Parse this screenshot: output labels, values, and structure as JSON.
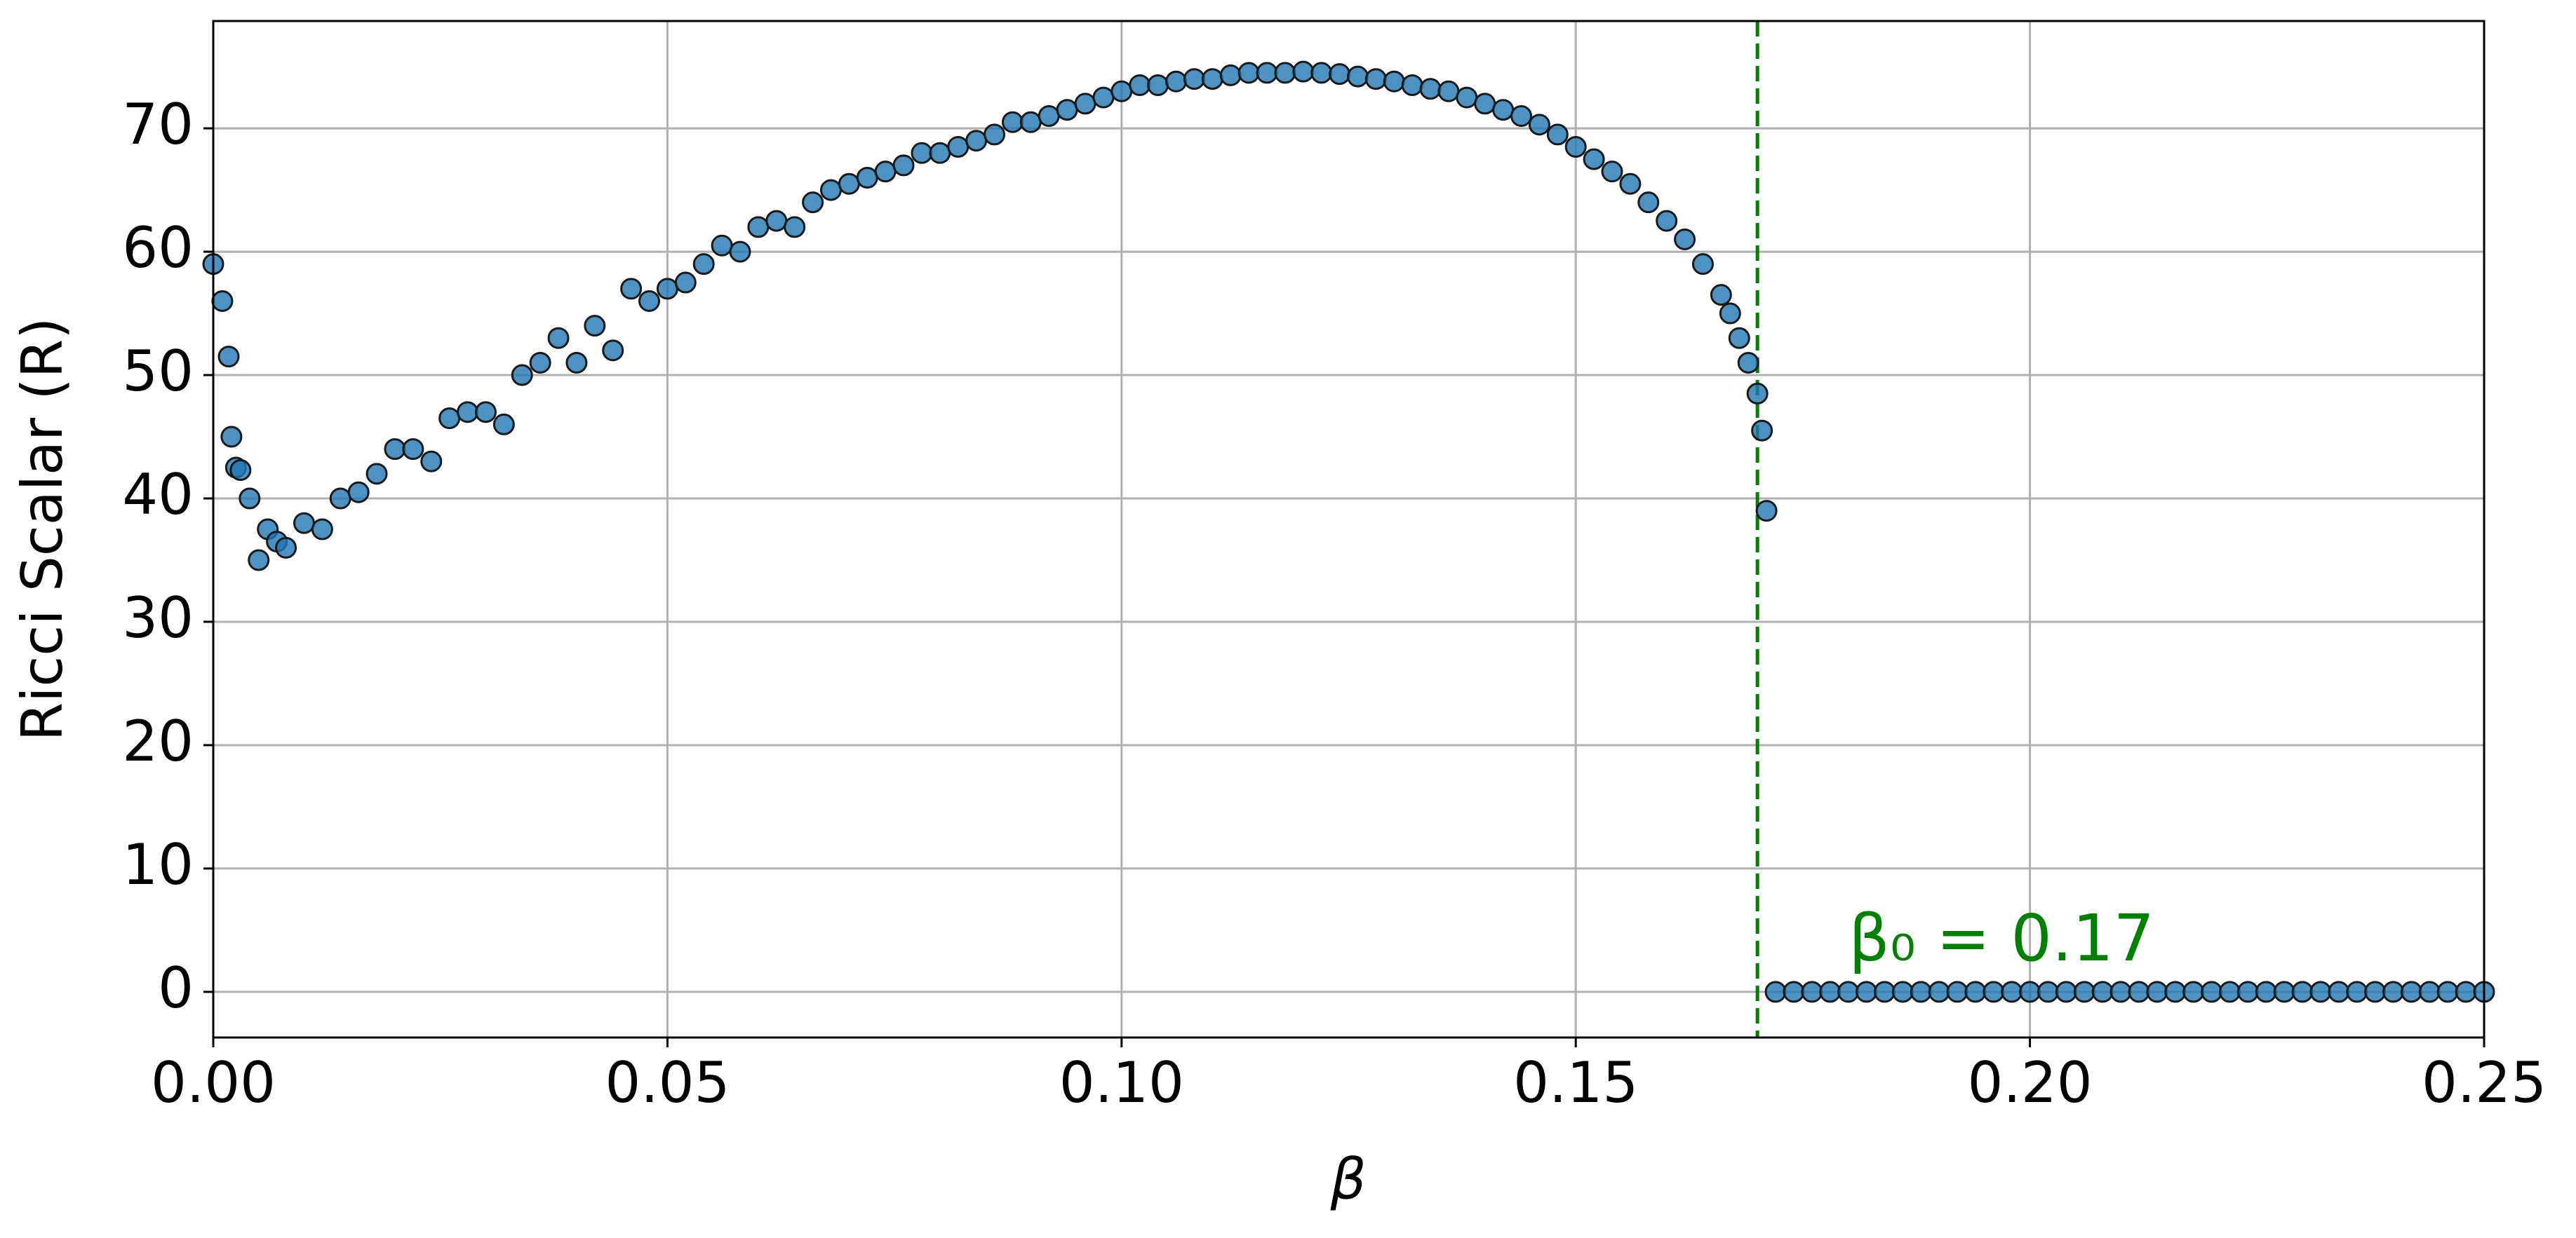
{
  "chart_data": {
    "type": "scatter",
    "xlabel": "β",
    "ylabel": "Ricci Scalar (R)",
    "xlim": [
      0,
      0.25
    ],
    "ylim": [
      -3.7,
      78.7
    ],
    "xticks": [
      {
        "value": 0,
        "label": "0.00"
      },
      {
        "value": 0.05,
        "label": "0.05"
      },
      {
        "value": 0.1,
        "label": "0.10"
      },
      {
        "value": 0.15,
        "label": "0.15"
      },
      {
        "value": 0.2,
        "label": "0.20"
      },
      {
        "value": 0.25,
        "label": "0.25"
      }
    ],
    "yticks": [
      0,
      10,
      20,
      30,
      40,
      50,
      60,
      70
    ],
    "grid": true,
    "vline": {
      "x": 0.17,
      "color": "#008000",
      "label": "β₀ = 0.17"
    },
    "series": [
      {
        "color": "#1f77b4",
        "x": [
          0,
          0.001,
          0.0017,
          0.002,
          0.0025,
          0.003,
          0.004,
          0.005,
          0.006,
          0.007,
          0.008,
          0.01,
          0.012,
          0.014,
          0.016,
          0.018,
          0.02,
          0.022,
          0.024,
          0.026,
          0.028,
          0.03,
          0.032,
          0.034,
          0.036,
          0.038,
          0.04,
          0.042,
          0.044,
          0.046,
          0.048,
          0.05,
          0.052,
          0.054,
          0.056,
          0.058,
          0.06,
          0.062,
          0.064,
          0.066,
          0.068,
          0.07,
          0.072,
          0.074,
          0.076,
          0.078,
          0.08,
          0.082,
          0.084,
          0.086,
          0.088,
          0.09,
          0.092,
          0.094,
          0.096,
          0.098,
          0.1,
          0.102,
          0.104,
          0.106,
          0.108,
          0.11,
          0.112,
          0.114,
          0.116,
          0.118,
          0.12,
          0.122,
          0.124,
          0.126,
          0.128,
          0.13,
          0.132,
          0.134,
          0.136,
          0.138,
          0.14,
          0.142,
          0.144,
          0.146,
          0.148,
          0.15,
          0.152,
          0.154,
          0.156,
          0.158,
          0.16,
          0.162,
          0.164,
          0.166,
          0.167,
          0.168,
          0.169,
          0.17,
          0.1705,
          0.171,
          0.172,
          0.174,
          0.176,
          0.178,
          0.18,
          0.182,
          0.184,
          0.186,
          0.188,
          0.19,
          0.192,
          0.194,
          0.196,
          0.198,
          0.2,
          0.202,
          0.204,
          0.206,
          0.208,
          0.21,
          0.212,
          0.214,
          0.216,
          0.218,
          0.22,
          0.222,
          0.224,
          0.226,
          0.228,
          0.23,
          0.232,
          0.234,
          0.236,
          0.238,
          0.24,
          0.242,
          0.244,
          0.246,
          0.248,
          0.25
        ],
        "values": [
          59,
          56,
          51.5,
          45,
          42.5,
          42.3,
          40,
          35,
          37.5,
          36.5,
          36,
          38,
          37.5,
          40,
          40.5,
          42,
          44,
          44,
          43,
          46.5,
          47,
          47,
          46,
          50,
          51,
          53,
          51,
          54,
          52,
          57,
          56,
          57,
          57.5,
          59,
          60.5,
          60,
          62,
          62.5,
          62,
          64,
          65,
          65.5,
          66,
          66.5,
          67,
          68,
          68,
          68.5,
          69,
          69.5,
          70.5,
          70.5,
          71,
          71.5,
          72,
          72.5,
          73,
          73.5,
          73.5,
          73.8,
          74,
          74,
          74.3,
          74.5,
          74.5,
          74.5,
          74.6,
          74.5,
          74.4,
          74.2,
          74,
          73.8,
          73.5,
          73.2,
          73,
          72.5,
          72,
          71.5,
          71,
          70.3,
          69.5,
          68.5,
          67.5,
          66.5,
          65.5,
          64,
          62.5,
          61,
          59,
          56.5,
          55,
          53,
          51,
          48.5,
          45.5,
          39,
          0,
          0,
          0,
          0,
          0,
          0,
          0,
          0,
          0,
          0,
          0,
          0,
          0,
          0,
          0,
          0,
          0,
          0,
          0,
          0,
          0,
          0,
          0,
          0,
          0,
          0,
          0,
          0,
          0,
          0,
          0,
          0,
          0,
          0,
          0,
          0,
          0,
          0,
          0,
          0
        ]
      }
    ]
  }
}
